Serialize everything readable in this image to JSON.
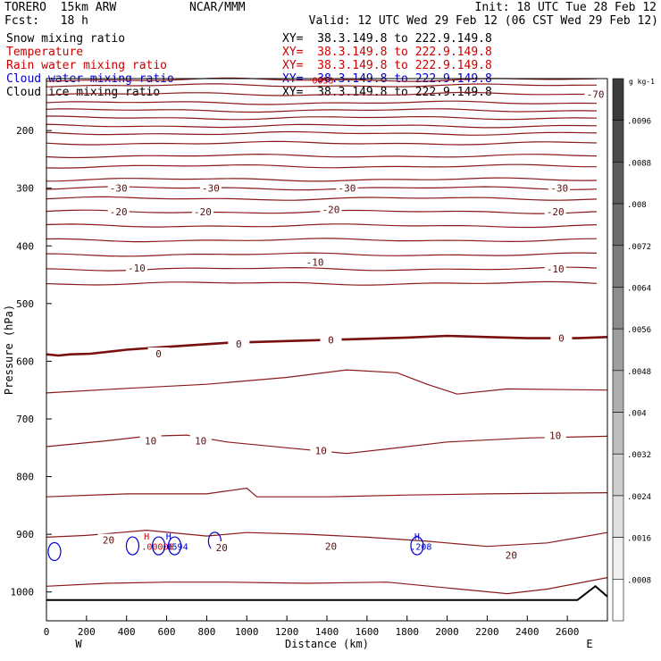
{
  "header": {
    "model": "TORERO  15km ARW",
    "center": "NCAR/MMM",
    "init": "Init: 18 UTC Tue 28 Feb 12",
    "fcst": "Fcst:   18 h",
    "valid": "Valid: 12 UTC Wed 29 Feb 12 (06 CST Wed 29 Feb 12)"
  },
  "fields": [
    {
      "label": "Snow mixing ratio",
      "xy": "XY=  38.3.149.8 to 222.9.149.8",
      "color": "#000000"
    },
    {
      "label": "Temperature",
      "xy": "XY=  38.3.149.8 to 222.9.149.8",
      "color": "#cc0000"
    },
    {
      "label": "Rain water mixing ratio",
      "xy": "XY=  38.3.149.8 to 222.9.149.8",
      "color": "#cc0000"
    },
    {
      "label": "Cloud water mixing ratio",
      "xy": "XY=  38.3.149.8 to 222.9.149.8",
      "color": "#0000cc"
    },
    {
      "label": "Cloud ice mixing ratio",
      "xy": "XY=  38.3.149.8 to 222.9.149.8",
      "color": "#000000"
    }
  ],
  "colorbar": {
    "unit": "g kg-1",
    "ticks": [
      ".0096",
      ".0088",
      ".008",
      ".0072",
      ".0064",
      ".0056",
      ".0048",
      ".004",
      ".0032",
      ".0024",
      ".0016",
      ".0008"
    ]
  },
  "chart_data": {
    "type": "contour",
    "xlabel": "Distance (km)",
    "ylabel": "Pressure (hPa)",
    "x_ticks": [
      0,
      200,
      400,
      600,
      800,
      1000,
      1200,
      1400,
      1600,
      1800,
      2000,
      2200,
      2400,
      2600
    ],
    "y_ticks": [
      200,
      300,
      400,
      500,
      600,
      700,
      800,
      900,
      1000
    ],
    "xlim": [
      0,
      2800
    ],
    "ylim": [
      1050,
      110
    ],
    "x_end_labels": {
      "left": "W",
      "right": "E"
    },
    "isotherm_labels": [
      {
        "text": "-70",
        "x": 2740,
        "p": 137
      },
      {
        "text": "-30",
        "x": 360,
        "p": 300
      },
      {
        "text": "-30",
        "x": 820,
        "p": 300
      },
      {
        "text": "-30",
        "x": 1500,
        "p": 300
      },
      {
        "text": "-30",
        "x": 2560,
        "p": 300
      },
      {
        "text": "-20",
        "x": 360,
        "p": 341
      },
      {
        "text": "-20",
        "x": 780,
        "p": 341
      },
      {
        "text": "-20",
        "x": 1420,
        "p": 337
      },
      {
        "text": "-20",
        "x": 2540,
        "p": 341
      },
      {
        "text": "-10",
        "x": 450,
        "p": 438
      },
      {
        "text": "-10",
        "x": 1340,
        "p": 428
      },
      {
        "text": "-10",
        "x": 2540,
        "p": 440
      },
      {
        "text": "0",
        "x": 560,
        "p": 587
      },
      {
        "text": "0",
        "x": 960,
        "p": 570
      },
      {
        "text": "0",
        "x": 1420,
        "p": 563
      },
      {
        "text": "0",
        "x": 2570,
        "p": 560
      },
      {
        "text": "10",
        "x": 520,
        "p": 738
      },
      {
        "text": "10",
        "x": 770,
        "p": 738
      },
      {
        "text": "10",
        "x": 1370,
        "p": 755
      },
      {
        "text": "10",
        "x": 2540,
        "p": 729
      },
      {
        "text": "20",
        "x": 310,
        "p": 910
      },
      {
        "text": "20",
        "x": 875,
        "p": 923
      },
      {
        "text": "20",
        "x": 1420,
        "p": 921
      },
      {
        "text": "20",
        "x": 2320,
        "p": 936
      }
    ],
    "other_labels": [
      {
        "text": "H",
        "x": 500,
        "p": 903,
        "color": "#cc0000"
      },
      {
        "text": ".00006",
        "x": 555,
        "p": 921,
        "color": "#cc0000"
      },
      {
        "text": "H",
        "x": 610,
        "p": 903,
        "color": "#0000cc"
      },
      {
        "text": ".0594",
        "x": 640,
        "p": 921,
        "color": "#0000cc"
      },
      {
        "text": "H",
        "x": 1850,
        "p": 903,
        "color": "#0000cc"
      },
      {
        "text": ".208",
        "x": 1870,
        "p": 921,
        "color": "#0000cc"
      },
      {
        "text": "0053",
        "x": 1380,
        "p": 112,
        "color": "#cc0000"
      }
    ]
  }
}
